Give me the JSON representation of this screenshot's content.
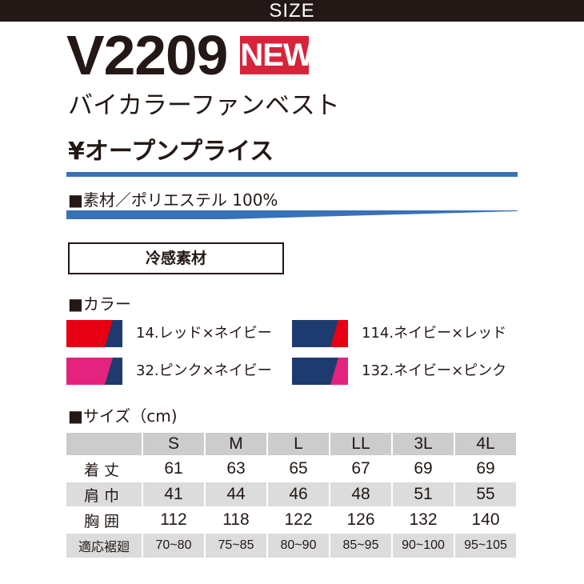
{
  "header": {
    "label": "SIZE"
  },
  "product": {
    "model": "V2209",
    "badge": "NEW",
    "name": "バイカラーファンベスト",
    "price": "¥オープンプライス",
    "material": "■素材／ポリエステル 100%",
    "feature": "冷感素材"
  },
  "colors": {
    "title": "■カラー",
    "items": [
      {
        "label": "14.レッド×ネイビー",
        "main": "#e60012",
        "accent": "#1d3b6e"
      },
      {
        "label": "114.ネイビー×レッド",
        "main": "#1d3b6e",
        "accent": "#e60012"
      },
      {
        "label": "32.ピンク×ネイビー",
        "main": "#e4237e",
        "accent": "#1d3b6e"
      },
      {
        "label": "132.ネイビー×ピンク",
        "main": "#1d3b6e",
        "accent": "#e4237e"
      }
    ]
  },
  "sizes": {
    "title": "■サイズ（cm)",
    "columns": [
      "S",
      "M",
      "L",
      "LL",
      "3L",
      "4L"
    ],
    "rows": [
      {
        "label": "着丈",
        "values": [
          "61",
          "63",
          "65",
          "67",
          "69",
          "69"
        ]
      },
      {
        "label": "肩巾",
        "values": [
          "41",
          "44",
          "46",
          "48",
          "51",
          "55"
        ]
      },
      {
        "label": "胸囲",
        "values": [
          "112",
          "118",
          "122",
          "126",
          "132",
          "140"
        ]
      },
      {
        "label": "適応裾廻",
        "values": [
          "70~80",
          "75~85",
          "80~90",
          "85~95",
          "90~100",
          "95~105"
        ]
      }
    ]
  },
  "palette": {
    "dark": "#231815",
    "blue_rule": "#3871b8",
    "badge_red": "#d7243b",
    "table_gray": "#cccccc"
  }
}
